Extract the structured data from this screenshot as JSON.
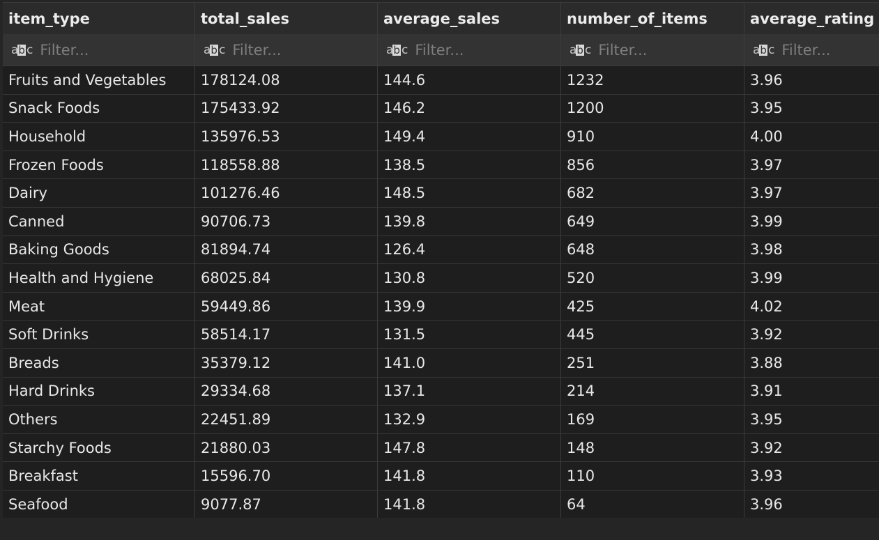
{
  "columns": [
    "item_type",
    "total_sales",
    "average_sales",
    "number_of_items",
    "average_rating"
  ],
  "filter": {
    "placeholder": "Filter...",
    "type_icon": "abc-text-type-icon"
  },
  "rows": [
    [
      "Fruits and Vegetables",
      "178124.08",
      "144.6",
      "1232",
      "3.96"
    ],
    [
      "Snack Foods",
      "175433.92",
      "146.2",
      "1200",
      "3.95"
    ],
    [
      "Household",
      "135976.53",
      "149.4",
      "910",
      "4.00"
    ],
    [
      "Frozen Foods",
      "118558.88",
      "138.5",
      "856",
      "3.97"
    ],
    [
      "Dairy",
      "101276.46",
      "148.5",
      "682",
      "3.97"
    ],
    [
      "Canned",
      "90706.73",
      "139.8",
      "649",
      "3.99"
    ],
    [
      "Baking Goods",
      "81894.74",
      "126.4",
      "648",
      "3.98"
    ],
    [
      "Health and Hygiene",
      "68025.84",
      "130.8",
      "520",
      "3.99"
    ],
    [
      "Meat",
      "59449.86",
      "139.9",
      "425",
      "4.02"
    ],
    [
      "Soft Drinks",
      "58514.17",
      "131.5",
      "445",
      "3.92"
    ],
    [
      "Breads",
      "35379.12",
      "141.0",
      "251",
      "3.88"
    ],
    [
      "Hard Drinks",
      "29334.68",
      "137.1",
      "214",
      "3.91"
    ],
    [
      "Others",
      "22451.89",
      "132.9",
      "169",
      "3.95"
    ],
    [
      "Starchy Foods",
      "21880.03",
      "147.8",
      "148",
      "3.92"
    ],
    [
      "Breakfast",
      "15596.70",
      "141.8",
      "110",
      "3.93"
    ],
    [
      "Seafood",
      "9077.87",
      "141.8",
      "64",
      "3.96"
    ]
  ],
  "colors": {
    "background": "#1e1e1e",
    "header": "#2b2b2b",
    "filter_row": "#333333",
    "text": "#e8e8e8"
  }
}
